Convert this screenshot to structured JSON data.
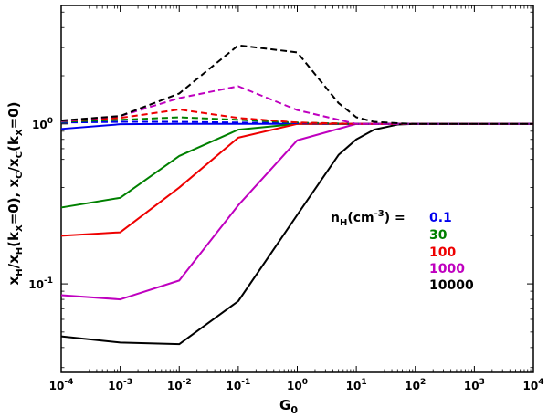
{
  "chart_data": {
    "type": "line",
    "title": "",
    "xlabel": "G",
    "xlabel_sub": "0",
    "ylabel": {
      "a": "x",
      "a_sub": "H",
      "b": "/x",
      "b_sub": "H",
      "c": "(k",
      "c_sub": "X",
      "d": "=0), x",
      "e_sub": "C",
      "f": "/x",
      "f_sub": "C",
      "g": "(k",
      "g_sub": "X",
      "h": "=0)"
    },
    "xscale": "log",
    "yscale": "log",
    "xlim": [
      0.0001,
      10000
    ],
    "ylim": [
      0.028,
      5.5
    ],
    "x_ticks": [
      {
        "base": "10",
        "exp": "-4"
      },
      {
        "base": "10",
        "exp": "-3"
      },
      {
        "base": "10",
        "exp": "-2"
      },
      {
        "base": "10",
        "exp": "-1"
      },
      {
        "base": "10",
        "exp": "0"
      },
      {
        "base": "10",
        "exp": "1"
      },
      {
        "base": "10",
        "exp": "2"
      },
      {
        "base": "10",
        "exp": "3"
      },
      {
        "base": "10",
        "exp": "4"
      }
    ],
    "y_ticks": [
      {
        "base": "10",
        "exp": "-1"
      },
      {
        "text": "10",
        "exp": "0"
      }
    ],
    "series": [
      {
        "name": "0.1",
        "color": "#0000ee",
        "style": "solid",
        "x": [
          0.0001,
          0.001,
          0.01,
          0.1,
          1,
          10,
          100,
          1000,
          10000
        ],
        "y": [
          0.93,
          0.995,
          1.0,
          1.0,
          1.0,
          1.0,
          1.0,
          1.0,
          1.0
        ]
      },
      {
        "name": "30",
        "color": "#008000",
        "style": "solid",
        "x": [
          0.0001,
          0.001,
          0.01,
          0.1,
          1,
          10,
          100,
          1000,
          10000
        ],
        "y": [
          0.3,
          0.345,
          0.63,
          0.92,
          1.0,
          1.0,
          1.0,
          1.0,
          1.0
        ]
      },
      {
        "name": "100",
        "color": "#ee0000",
        "style": "solid",
        "x": [
          0.0001,
          0.001,
          0.01,
          0.1,
          1,
          10,
          100,
          1000,
          10000
        ],
        "y": [
          0.2,
          0.21,
          0.4,
          0.82,
          1.0,
          1.0,
          1.0,
          1.0,
          1.0
        ]
      },
      {
        "name": "1000",
        "color": "#bf00bf",
        "style": "solid",
        "x": [
          0.0001,
          0.001,
          0.01,
          0.1,
          1,
          10,
          100,
          1000,
          10000
        ],
        "y": [
          0.085,
          0.08,
          0.105,
          0.31,
          0.79,
          1.0,
          1.0,
          1.0,
          1.0
        ]
      },
      {
        "name": "10000",
        "color": "#000000",
        "style": "solid",
        "x": [
          0.0001,
          0.001,
          0.01,
          0.1,
          1,
          5,
          10,
          20,
          50,
          100,
          1000,
          10000
        ],
        "y": [
          0.047,
          0.043,
          0.042,
          0.078,
          0.27,
          0.64,
          0.8,
          0.92,
          0.99,
          1.0,
          1.0,
          1.0
        ]
      },
      {
        "name": "0.1 (C)",
        "color": "#0000ee",
        "style": "dashed",
        "x": [
          0.0001,
          0.001,
          0.01,
          0.1,
          1,
          10,
          100,
          1000,
          10000
        ],
        "y": [
          1.02,
          1.03,
          1.03,
          1.02,
          1.01,
          1.0,
          1.0,
          1.0,
          1.0
        ]
      },
      {
        "name": "30 (C)",
        "color": "#008000",
        "style": "dashed",
        "x": [
          0.0001,
          0.001,
          0.01,
          0.1,
          1,
          10,
          100,
          1000,
          10000
        ],
        "y": [
          1.03,
          1.06,
          1.1,
          1.06,
          1.02,
          1.0,
          1.0,
          1.0,
          1.0
        ]
      },
      {
        "name": "100 (C)",
        "color": "#ee0000",
        "style": "dashed",
        "x": [
          0.0001,
          0.001,
          0.01,
          0.1,
          1,
          10,
          100,
          1000,
          10000
        ],
        "y": [
          1.04,
          1.09,
          1.23,
          1.09,
          1.02,
          1.0,
          1.0,
          1.0,
          1.0
        ]
      },
      {
        "name": "1000 (C)",
        "color": "#bf00bf",
        "style": "dashed",
        "x": [
          0.0001,
          0.001,
          0.01,
          0.1,
          1,
          10,
          100,
          1000,
          10000
        ],
        "y": [
          1.04,
          1.12,
          1.45,
          1.72,
          1.22,
          1.0,
          1.0,
          1.0,
          1.0
        ]
      },
      {
        "name": "10000 (C)",
        "color": "#000000",
        "style": "dashed",
        "x": [
          0.0001,
          0.001,
          0.01,
          0.1,
          1,
          5,
          10,
          20,
          50,
          100,
          1000,
          10000
        ],
        "y": [
          1.05,
          1.12,
          1.55,
          3.1,
          2.8,
          1.35,
          1.1,
          1.03,
          1.01,
          1.0,
          1.0,
          1.0
        ]
      }
    ],
    "legend": {
      "position": "center-right",
      "title_parts": {
        "n": "n",
        "n_sub": "H",
        "paren": "(cm",
        "exp": "-3",
        "close": ") = "
      },
      "entries": [
        {
          "text": "0.1",
          "color": "#0000ee"
        },
        {
          "text": "30",
          "color": "#008000"
        },
        {
          "text": "100",
          "color": "#ee0000"
        },
        {
          "text": "1000",
          "color": "#bf00bf"
        },
        {
          "text": "10000",
          "color": "#000000"
        }
      ]
    }
  }
}
